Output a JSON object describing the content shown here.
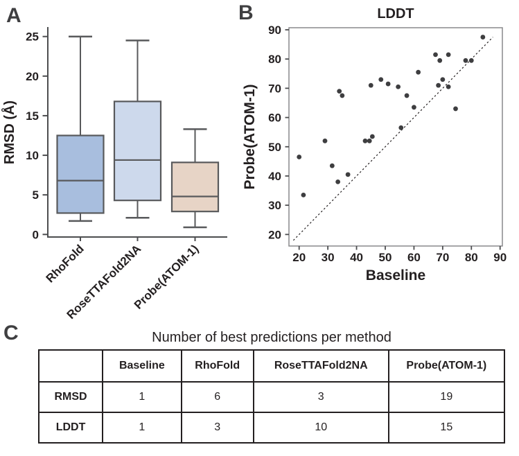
{
  "figure": {
    "background": "#ffffff",
    "text_color": "#231f20",
    "panel_labels": {
      "a": "A",
      "b": "B",
      "c": "C"
    }
  },
  "chart_data": [
    {
      "id": "rmsd_boxplot",
      "panel": "A",
      "type": "boxplot",
      "ylabel": "RMSD (Å)",
      "ylim": [
        0,
        26.2
      ],
      "yticks": [
        0,
        5,
        10,
        15,
        20,
        25
      ],
      "categories": [
        "RhoFold",
        "RoseTTAFold2NA",
        "Probe(ATOM-1)"
      ],
      "boxes": [
        {
          "label": "RhoFold",
          "whisker_low": 1.7,
          "q1": 2.7,
          "median": 6.8,
          "q3": 12.5,
          "whisker_high": 25.0,
          "fill": "#a8bede"
        },
        {
          "label": "RoseTTAFold2NA",
          "whisker_low": 2.1,
          "q1": 4.3,
          "median": 9.4,
          "q3": 16.8,
          "whisker_high": 24.5,
          "fill": "#cdd9ec"
        },
        {
          "label": "Probe(ATOM-1)",
          "whisker_low": 0.9,
          "q1": 2.9,
          "median": 4.8,
          "q3": 9.1,
          "whisker_high": 13.3,
          "fill": "#e7d4c6"
        }
      ],
      "stroke_color": "#58595b",
      "grid": false
    },
    {
      "id": "lddt_scatter",
      "panel": "B",
      "type": "scatter",
      "title": "LDDT",
      "xlabel": "Baseline",
      "ylabel": "Probe(ATOM-1)",
      "xlim": [
        16.5,
        91
      ],
      "ylim": [
        16,
        91
      ],
      "xticks": [
        20,
        30,
        40,
        50,
        60,
        70,
        80,
        90
      ],
      "yticks": [
        20,
        30,
        40,
        50,
        60,
        70,
        80,
        90
      ],
      "identity_line": {
        "style": "dashed",
        "from": 18,
        "to": 87.5
      },
      "points": [
        [
          84,
          87.5
        ],
        [
          67.5,
          81.5
        ],
        [
          72,
          81.5
        ],
        [
          69,
          79.5
        ],
        [
          78,
          79.5
        ],
        [
          80,
          79.5
        ],
        [
          61.5,
          75.5
        ],
        [
          70,
          73
        ],
        [
          48.5,
          73
        ],
        [
          51,
          71.5
        ],
        [
          45,
          71
        ],
        [
          68.5,
          71
        ],
        [
          54.5,
          70.5
        ],
        [
          72,
          70.5
        ],
        [
          34,
          69
        ],
        [
          35,
          67.5
        ],
        [
          57.5,
          67.5
        ],
        [
          60,
          63.5
        ],
        [
          74.5,
          63
        ],
        [
          55.5,
          56.5
        ],
        [
          45.5,
          53.5
        ],
        [
          43,
          52
        ],
        [
          44.5,
          52
        ],
        [
          29,
          52
        ],
        [
          20,
          46.5
        ],
        [
          31.5,
          43.5
        ],
        [
          37,
          40.5
        ],
        [
          33.5,
          38
        ],
        [
          21.5,
          33.5
        ]
      ],
      "point_color": "#3e3e40",
      "frame_color": "#88898c",
      "grid": false,
      "legend": "none"
    },
    {
      "id": "best_predictions_table",
      "panel": "C",
      "type": "table",
      "title": "Number of best predictions per method",
      "columns": [
        "",
        "Baseline",
        "RhoFold",
        "RoseTTAFold2NA",
        "Probe(ATOM-1)"
      ],
      "rows": [
        {
          "label": "RMSD",
          "values": [
            "1",
            "6",
            "3",
            "19"
          ]
        },
        {
          "label": "LDDT",
          "values": [
            "1",
            "3",
            "10",
            "15"
          ]
        }
      ]
    }
  ]
}
